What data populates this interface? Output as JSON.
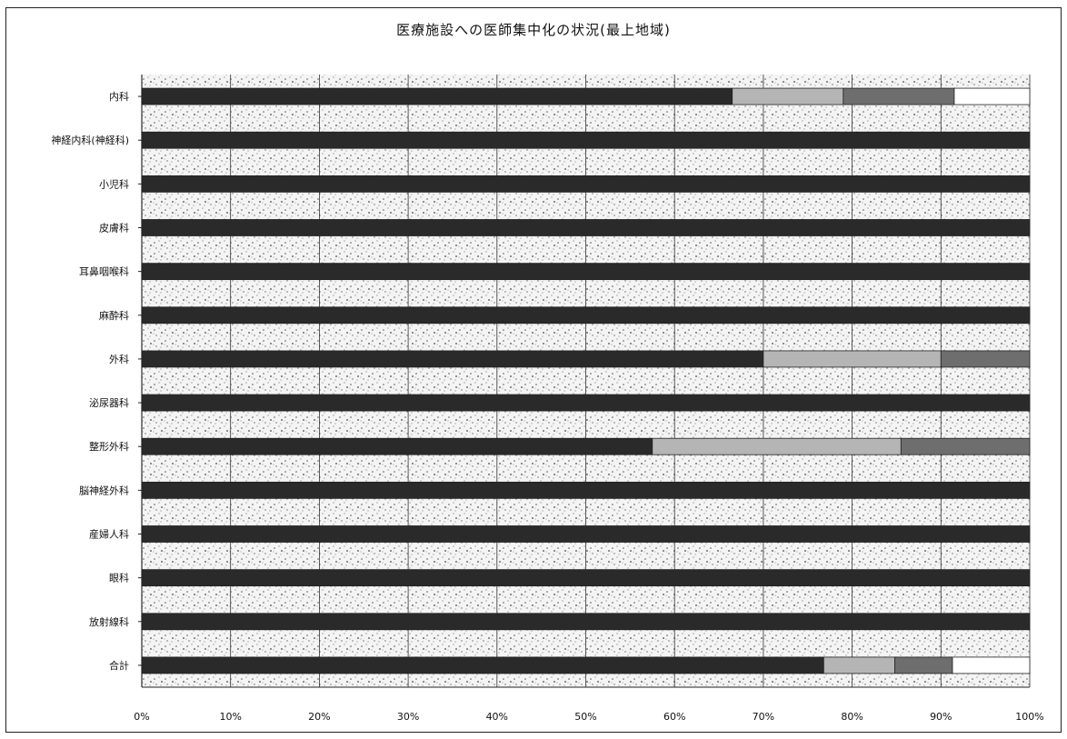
{
  "chart_data": {
    "type": "bar",
    "orientation": "horizontal",
    "stacked": "percent",
    "title": "医療施設への医師集中化の状況(最上地域)",
    "categories": [
      "内科",
      "神経内科(神経科)",
      "小児科",
      "皮膚科",
      "耳鼻咽喉科",
      "麻酔科",
      "外科",
      "泌尿器科",
      "整形外科",
      "脳神経外科",
      "産婦人科",
      "眼科",
      "放射線科",
      "合計"
    ],
    "series": [
      {
        "values": [
          66.5,
          100,
          100,
          100,
          100,
          100,
          70,
          100,
          57.5,
          100,
          100,
          100,
          100,
          76.8
        ],
        "color": "#2a2a2a"
      },
      {
        "values": [
          12.5,
          0,
          0,
          0,
          0,
          0,
          20,
          0,
          28,
          0,
          0,
          0,
          0,
          8
        ],
        "color": "#b5b5b5"
      },
      {
        "values": [
          12.5,
          0,
          0,
          0,
          0,
          0,
          10,
          0,
          14.5,
          0,
          0,
          0,
          0,
          6.5
        ],
        "color": "#6e6e6e"
      },
      {
        "values": [
          8.5,
          0,
          0,
          0,
          0,
          0,
          0,
          0,
          0,
          0,
          0,
          0,
          0,
          8.7
        ],
        "color": "#ffffff"
      }
    ],
    "xticks": [
      "0%",
      "10%",
      "20%",
      "30%",
      "40%",
      "50%",
      "60%",
      "70%",
      "80%",
      "90%",
      "100%"
    ],
    "xlim": [
      0,
      100
    ],
    "grid": true
  }
}
